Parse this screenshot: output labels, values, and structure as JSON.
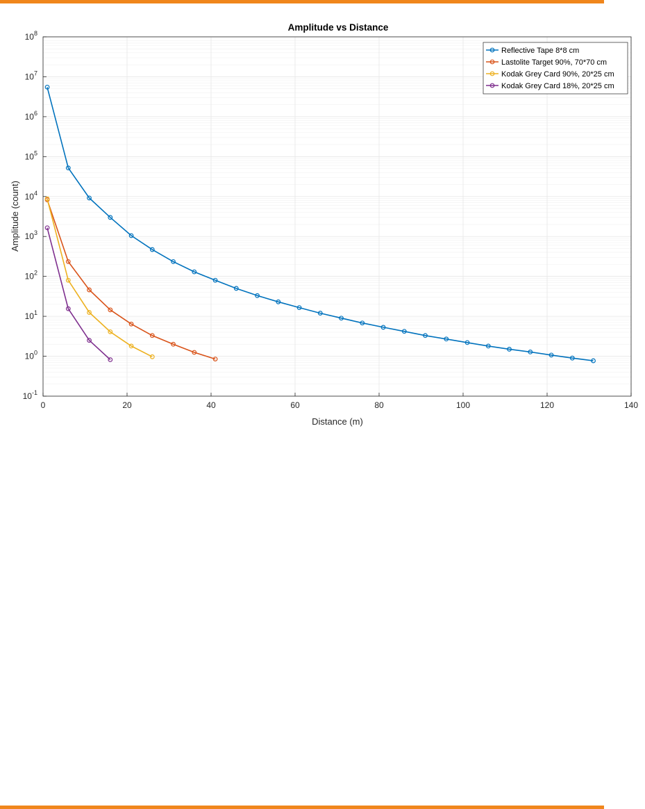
{
  "colors": {
    "page_rule": "#f0861c",
    "grid": "#e6e6e6",
    "axis": "#262626"
  },
  "chart_data": {
    "type": "line",
    "title": "Amplitude vs Distance",
    "xlabel": "Distance (m)",
    "ylabel": "Amplitude (count)",
    "xlim": [
      0,
      140
    ],
    "ylim": [
      0.1,
      100000000
    ],
    "yscale": "log",
    "grid": true,
    "legend": "top-right",
    "xticks": [
      0,
      20,
      40,
      60,
      80,
      100,
      120,
      140
    ],
    "xtick_labels": [
      "0",
      "20",
      "40",
      "60",
      "80",
      "100",
      "120",
      "140"
    ],
    "yticks": [
      {
        "base": "10",
        "exp": "-1",
        "value": 0.1
      },
      {
        "base": "10",
        "exp": "0",
        "value": 1
      },
      {
        "base": "10",
        "exp": "1",
        "value": 10
      },
      {
        "base": "10",
        "exp": "2",
        "value": 100
      },
      {
        "base": "10",
        "exp": "3",
        "value": 1000
      },
      {
        "base": "10",
        "exp": "4",
        "value": 10000
      },
      {
        "base": "10",
        "exp": "5",
        "value": 100000
      },
      {
        "base": "10",
        "exp": "6",
        "value": 1000000
      },
      {
        "base": "10",
        "exp": "7",
        "value": 10000000
      },
      {
        "base": "10",
        "exp": "8",
        "value": 100000000
      }
    ],
    "series": [
      {
        "name": "Reflective Tape 8*8 cm",
        "color": "#0072bd",
        "x": [
          1,
          6,
          11,
          16,
          21,
          26,
          31,
          36,
          41,
          46,
          51,
          56,
          61,
          66,
          71,
          76,
          81,
          86,
          91,
          96,
          101,
          106,
          111,
          116,
          121,
          126,
          131
        ],
        "y": [
          5500000,
          52000,
          9200,
          3000,
          1050,
          470,
          235,
          130,
          80,
          50,
          33,
          23,
          16.5,
          12,
          9,
          6.8,
          5.3,
          4.2,
          3.3,
          2.7,
          2.2,
          1.8,
          1.5,
          1.28,
          1.07,
          0.9,
          0.77
        ]
      },
      {
        "name": "Lastolite Target 90%, 70*70 cm",
        "color": "#d95319",
        "x": [
          1,
          6,
          11,
          16,
          21,
          26,
          31,
          36,
          41
        ],
        "y": [
          8300,
          235,
          46,
          14.5,
          6.4,
          3.3,
          2.0,
          1.25,
          0.85
        ]
      },
      {
        "name": "Kodak Grey Card 90%, 20*25 cm",
        "color": "#edb120",
        "x": [
          1,
          6,
          11,
          16,
          21,
          26
        ],
        "y": [
          8800,
          80,
          12.5,
          4.1,
          1.8,
          0.97
        ]
      },
      {
        "name": "Kodak Grey Card 18%, 20*25 cm",
        "color": "#7e2f8e",
        "x": [
          1,
          6,
          11,
          16
        ],
        "y": [
          1650,
          15.5,
          2.5,
          0.82
        ]
      }
    ]
  }
}
